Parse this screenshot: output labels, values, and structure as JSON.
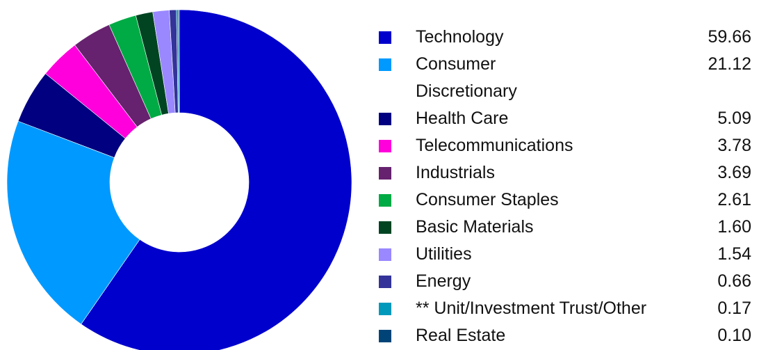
{
  "chart_data": {
    "type": "pie",
    "donut": true,
    "legend_position": "right",
    "slices": [
      {
        "label": "Technology",
        "value": 59.66,
        "color": "#0000cc"
      },
      {
        "label": "Consumer Discretionary",
        "value": 21.12,
        "color": "#0099ff"
      },
      {
        "label": "Health Care",
        "value": 5.09,
        "color": "#000080"
      },
      {
        "label": "Telecommunications",
        "value": 3.78,
        "color": "#ff00dd"
      },
      {
        "label": "Industrials",
        "value": 3.69,
        "color": "#66226e"
      },
      {
        "label": "Consumer Staples",
        "value": 2.61,
        "color": "#00aa44"
      },
      {
        "label": "Basic Materials",
        "value": 1.6,
        "color": "#004422"
      },
      {
        "label": "Utilities",
        "value": 1.54,
        "color": "#9988ff"
      },
      {
        "label": "Energy",
        "value": 0.66,
        "color": "#333399"
      },
      {
        "label": "** Unit/Investment Trust/Other",
        "value": 0.17,
        "color": "#0099bb"
      },
      {
        "label": "Real Estate",
        "value": 0.1,
        "color": "#004477"
      }
    ]
  }
}
